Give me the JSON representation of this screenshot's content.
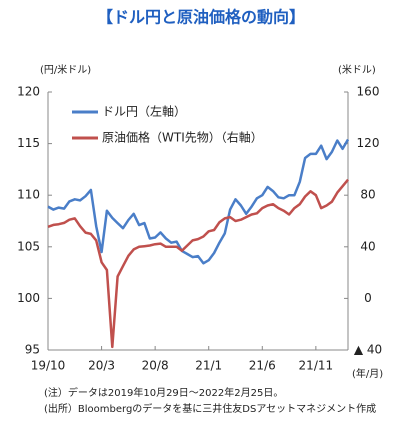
{
  "chart_data": {
    "type": "line",
    "title": "【ドル円と原油価格の動向】",
    "y_axis_label": "(円/米ドル)",
    "y2_axis_label": "(米ドル)",
    "x_axis_label": "(年/月)",
    "notes": [
      "(注）データは2019年10月29日～2022年2月25日。",
      "(出所）Bloombergのデータを基に三井住友DSアセットマネジメント作成"
    ],
    "categories": [
      "19/10",
      null,
      null,
      null,
      null,
      null,
      null,
      null,
      null,
      null,
      "20/3",
      null,
      null,
      null,
      null,
      null,
      null,
      null,
      null,
      null,
      "20/8",
      null,
      null,
      null,
      null,
      null,
      null,
      null,
      null,
      null,
      "21/1",
      null,
      null,
      null,
      null,
      null,
      null,
      null,
      null,
      null,
      "21/6",
      null,
      null,
      null,
      null,
      null,
      null,
      null,
      null,
      null,
      "21/11",
      null,
      null,
      null,
      null,
      null,
      null
    ],
    "series": [
      {
        "name": "ドル円（左軸）",
        "color": "#4a7ec8",
        "axis": "y",
        "values": [
          108.9,
          108.6,
          108.8,
          108.7,
          109.4,
          109.6,
          109.5,
          109.9,
          110.5,
          107.0,
          104.5,
          108.5,
          107.8,
          107.3,
          106.8,
          107.6,
          108.2,
          107.1,
          107.3,
          105.8,
          105.9,
          106.4,
          105.8,
          105.4,
          105.5,
          104.6,
          104.3,
          104.0,
          104.1,
          103.4,
          103.7,
          104.4,
          105.4,
          106.3,
          108.6,
          109.6,
          109.0,
          108.2,
          108.9,
          109.7,
          110.0,
          110.8,
          110.4,
          109.8,
          109.7,
          110.0,
          110.0,
          111.3,
          113.6,
          114.0,
          114.0,
          114.8,
          113.5,
          114.2,
          115.3,
          114.5,
          115.4
        ]
      },
      {
        "name": "原油価格（WTI先物）（右軸）",
        "color": "#c0504d",
        "axis": "y2",
        "values": [
          55.5,
          57,
          57.5,
          58.5,
          61,
          62,
          56,
          51,
          50,
          45,
          28,
          22,
          -37.6,
          17,
          25,
          33,
          38,
          40,
          40.5,
          41,
          42,
          42.5,
          40,
          40,
          40,
          37,
          41,
          45,
          46,
          48,
          52,
          53,
          59,
          62,
          63,
          60,
          61,
          63,
          65,
          66,
          70,
          72,
          73,
          70,
          68,
          65,
          70,
          73,
          79,
          83,
          80,
          70,
          72,
          75,
          82,
          87,
          92
        ]
      }
    ],
    "ylim": [
      95,
      120
    ],
    "yticks": [
      95,
      100,
      105,
      110,
      115,
      120
    ],
    "y2lim": [
      -40,
      160
    ],
    "y2ticks": [
      {
        "value": -40,
        "label": "▲ 40"
      },
      0,
      40,
      80,
      120,
      160
    ],
    "legend": "upper left",
    "grid": false
  }
}
